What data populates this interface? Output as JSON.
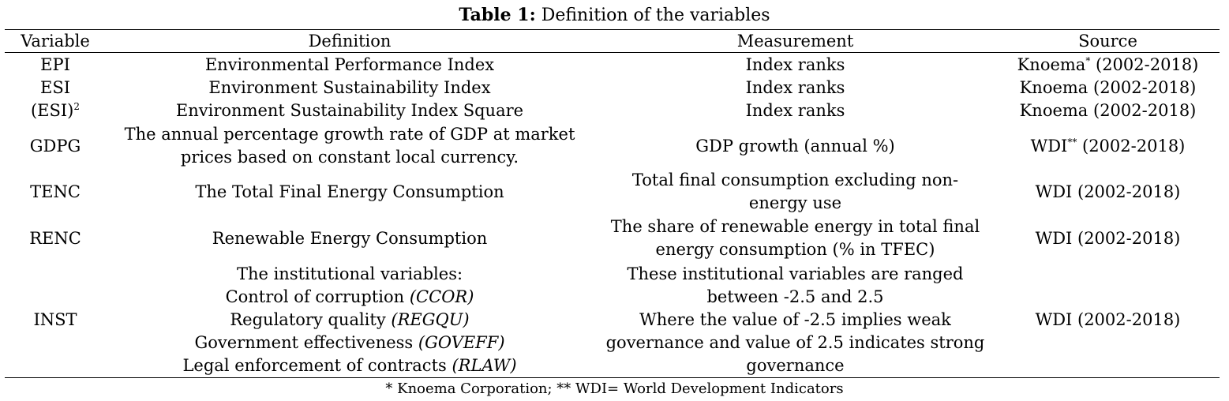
{
  "caption": {
    "label": "Table 1:",
    "text": " Definition of the variables"
  },
  "headers": {
    "variable": "Variable",
    "definition": "Definition",
    "measurement": "Measurement",
    "source": "Source"
  },
  "rows": [
    {
      "variable": "EPI",
      "definition": "Environmental Performance Index",
      "measurement": "Index ranks",
      "source": "Knoema",
      "source_mark": "*",
      "source_years": " (2002-2018)"
    },
    {
      "variable": "ESI",
      "definition": "Environment Sustainability Index",
      "measurement": "Index ranks",
      "source": "Knoema (2002-2018)"
    },
    {
      "variable": "(ESI)",
      "variable_sup": "2",
      "definition": "Environment Sustainability Index Square",
      "measurement": "Index ranks",
      "source": "Knoema (2002-2018)"
    },
    {
      "variable": "GDPG",
      "definition_lines": [
        "The annual percentage growth rate of GDP at market",
        "prices based on constant local currency."
      ],
      "measurement": "GDP growth (annual %)",
      "source": "WDI",
      "source_mark": "**",
      "source_years": " (2002-2018)"
    },
    {
      "variable": "TENC",
      "definition": "The Total Final Energy Consumption",
      "measurement_lines": [
        "Total final consumption excluding non-",
        "energy use"
      ],
      "source": "WDI (2002-2018)"
    },
    {
      "variable": "RENC",
      "definition": "Renewable Energy Consumption",
      "measurement_lines": [
        "The share of renewable energy in total final",
        "energy consumption (% in TFEC)"
      ],
      "source": "WDI (2002-2018)"
    },
    {
      "variable": "INST",
      "definition_heading": "The institutional variables:",
      "definition_items": [
        {
          "name": "Control of corruption ",
          "code": "(CCOR)"
        },
        {
          "name": "Regulatory quality ",
          "code": "(REGQU)"
        },
        {
          "name": "Government effectiveness ",
          "code": "(GOVEFF)"
        },
        {
          "name": "Legal enforcement of contracts ",
          "code": "(RLAW)"
        }
      ],
      "measurement_lines": [
        "These institutional variables are ranged",
        "between -2.5 and 2.5",
        "Where the value of -2.5 implies weak",
        "governance and value of 2.5 indicates strong",
        "governance"
      ],
      "source": "WDI (2002-2018)"
    }
  ],
  "footnote": "* Knoema Corporation; ** WDI= World Development Indicators"
}
